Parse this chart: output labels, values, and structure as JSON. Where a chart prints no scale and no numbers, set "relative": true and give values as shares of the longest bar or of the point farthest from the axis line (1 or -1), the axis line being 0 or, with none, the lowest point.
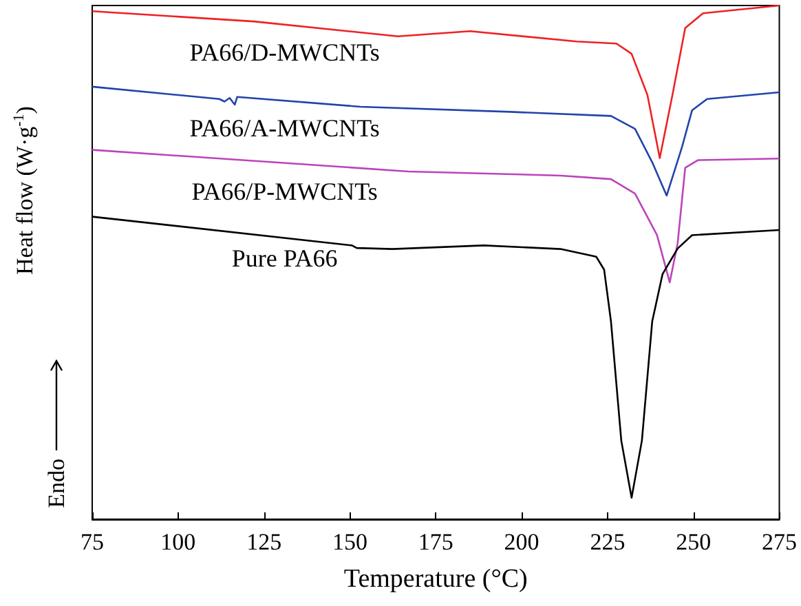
{
  "chart_data": {
    "type": "line",
    "relative": true,
    "xlabel": "Temperature (°C)",
    "ylabel": "Heat flow (W·g$^{-1}$)",
    "annotations": [
      "Endo"
    ],
    "xlim": [
      75,
      275
    ],
    "xticks": [
      75,
      100,
      125,
      150,
      175,
      200,
      225,
      250,
      275
    ],
    "grid": false,
    "legend": false,
    "marker": "none",
    "line_style": "solid",
    "series": [
      {
        "name": "PA66/D-MWCNTs",
        "color": "#ee2222",
        "x": [
          75,
          122,
          164,
          185,
          216,
          227.6,
          232,
          236.6,
          240.2,
          243.9,
          247.6,
          252.8,
          275
        ],
        "values": [
          0.989,
          0.969,
          0.94,
          0.95,
          0.93,
          0.926,
          0.906,
          0.826,
          0.703,
          0.826,
          0.956,
          0.985,
          1
        ]
      },
      {
        "name": "PA66/A-MWCNTs",
        "color": "#2244aa",
        "x": [
          75,
          112,
          113.5,
          115,
          116.5,
          117.2,
          153,
          196.5,
          226,
          233,
          238,
          242.2,
          246.7,
          249.6,
          254,
          275
        ],
        "values": [
          0.842,
          0.818,
          0.813,
          0.82,
          0.807,
          0.822,
          0.803,
          0.793,
          0.785,
          0.76,
          0.695,
          0.63,
          0.725,
          0.796,
          0.818,
          0.831
        ]
      },
      {
        "name": "PA66/P-MWCNTs",
        "color": "#bb44bb",
        "x": [
          75,
          166.9,
          211.3,
          226,
          233,
          239.4,
          243.1,
          245.4,
          247.6,
          251.3,
          275
        ],
        "values": [
          0.719,
          0.677,
          0.669,
          0.662,
          0.634,
          0.553,
          0.461,
          0.537,
          0.684,
          0.699,
          0.702
        ]
      },
      {
        "name": "Pure PA66",
        "color": "#000000",
        "x": [
          75,
          150.6,
          152,
          162.4,
          189,
          211.3,
          221.7,
          224,
          226,
          229,
          232,
          235,
          238,
          241,
          245.4,
          249.6,
          275
        ],
        "values": [
          0.589,
          0.533,
          0.528,
          0.526,
          0.533,
          0.526,
          0.511,
          0.486,
          0.385,
          0.153,
          0.042,
          0.153,
          0.385,
          0.477,
          0.527,
          0.553,
          0.563
        ]
      }
    ]
  }
}
